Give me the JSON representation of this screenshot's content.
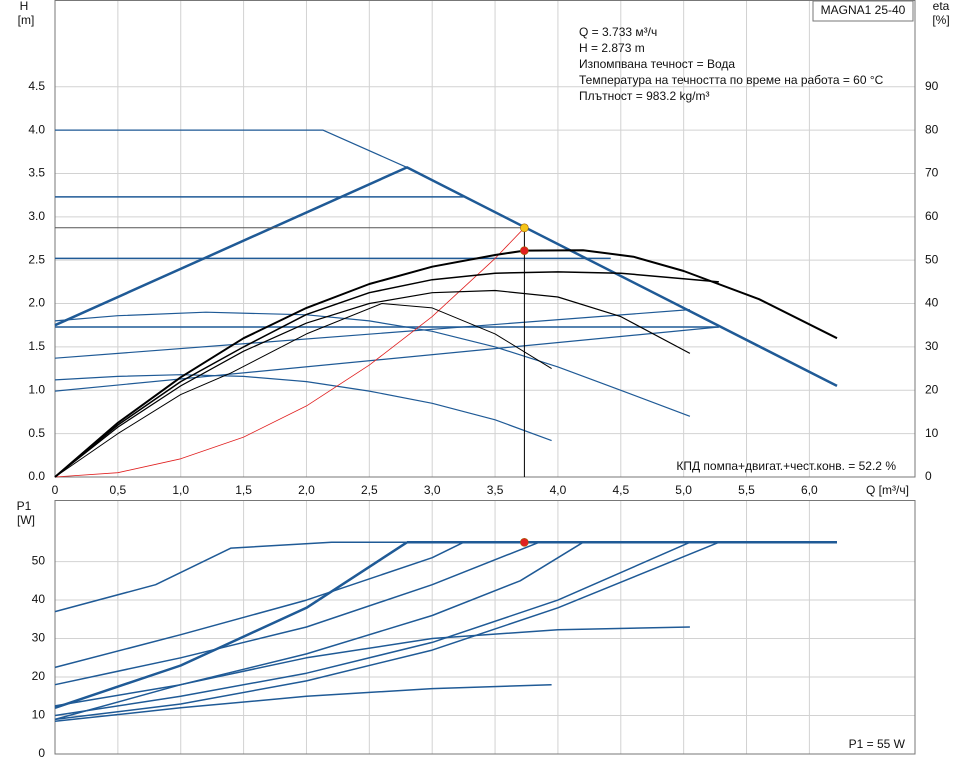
{
  "chart_data": [
    {
      "type": "line",
      "model": "MAGNA1 25-40",
      "y_label": "H",
      "y_unit": "[m]",
      "y2_label": "eta",
      "y2_unit": "[%]",
      "x_label": "Q [m³/ч]",
      "annotations": [
        "Q = 3.733 м³/ч",
        "H = 2.873 m",
        "Изпомпвана течност = Вода",
        "Температура на течността по време на работа = 60 °C",
        "Плътност = 983.2 kg/m³"
      ],
      "efficiency_note": "КПД помпа+двигат.+чест.конв. = 52.2 %",
      "xlim": [
        0,
        6.84
      ],
      "ylim": [
        0,
        5.5
      ],
      "y2lim": [
        0,
        110
      ],
      "xticks": [
        0,
        {
          "value": 0.5,
          "label": "0,5"
        },
        {
          "value": 1,
          "label": "1,0"
        },
        {
          "value": 1.5,
          "label": "1,5"
        },
        {
          "value": 2,
          "label": "2,0"
        },
        {
          "value": 2.5,
          "label": "2,5"
        },
        {
          "value": 3,
          "label": "3,0"
        },
        {
          "value": 3.5,
          "label": "3,5"
        },
        {
          "value": 4,
          "label": "4,0"
        },
        {
          "value": 4.5,
          "label": "4,5"
        },
        {
          "value": 5,
          "label": "5,0"
        },
        {
          "value": 5.5,
          "label": "5,5"
        },
        {
          "value": 6,
          "label": "6,0"
        }
      ],
      "yticks": [
        {
          "value": 0,
          "label": "0.0"
        },
        0.5,
        {
          "value": 1,
          "label": "1.0"
        },
        1.5,
        {
          "value": 2,
          "label": "2.0"
        },
        2.5,
        {
          "value": 3,
          "label": "3.0"
        },
        3.5,
        {
          "value": 4,
          "label": "4.0"
        },
        4.5
      ],
      "y2ticks": [
        0,
        10,
        20,
        30,
        40,
        50,
        60,
        70,
        80,
        90
      ],
      "show_xtick_labels": true,
      "grid": true,
      "series": [
        {
          "color": "#1f5a96",
          "line_width": 1.2,
          "x": [
            0,
            2.13,
            2.8
          ],
          "values": [
            4.0,
            4.0,
            3.57
          ]
        },
        {
          "color": "#1f5a96",
          "line_width": 2.5,
          "x": [
            0,
            2.8,
            6.22
          ],
          "values": [
            1.75,
            3.57,
            1.05
          ]
        },
        {
          "color": "#1f5a96",
          "line_width": 1.5,
          "x": [
            0,
            3.25
          ],
          "values": [
            3.23,
            3.23
          ]
        },
        {
          "color": "#1f5a96",
          "line_width": 1.5,
          "x": [
            0,
            4.42
          ],
          "values": [
            2.52,
            2.52
          ]
        },
        {
          "color": "#1f5a96",
          "line_width": 1.5,
          "x": [
            0,
            5.28
          ],
          "values": [
            1.73,
            1.73
          ]
        },
        {
          "color": "#1f5a96",
          "line_width": 1.2,
          "x": [
            0,
            5.05
          ],
          "values": [
            1.37,
            1.93
          ]
        },
        {
          "color": "#1f5a96",
          "line_width": 1.2,
          "x": [
            0,
            5.28
          ],
          "values": [
            0.99,
            1.73
          ]
        },
        {
          "color": "#1f5a96",
          "line_width": 1.2,
          "x": [
            0,
            0.5,
            1.2,
            2,
            2.5,
            3,
            3.5,
            4,
            4.5,
            5.05
          ],
          "values": [
            1.8,
            1.86,
            1.9,
            1.87,
            1.8,
            1.68,
            1.5,
            1.27,
            1.0,
            0.7
          ]
        },
        {
          "color": "#1f5a96",
          "line_width": 1.2,
          "x": [
            0,
            0.5,
            1,
            1.5,
            2,
            2.5,
            3,
            3.5,
            3.95
          ],
          "values": [
            1.12,
            1.16,
            1.18,
            1.16,
            1.1,
            0.99,
            0.85,
            0.66,
            0.42
          ]
        },
        {
          "color": "#555555",
          "line_width": 1,
          "x": [
            0,
            3.733
          ],
          "values": [
            2.873,
            2.873
          ]
        },
        {
          "color": "#000000",
          "line_width": 1,
          "x": [
            3.733,
            3.733
          ],
          "values": [
            0,
            2.873
          ]
        },
        {
          "color": "#e02020",
          "line_width": 0.8,
          "x": [
            0,
            0.5,
            1,
            1.5,
            2,
            2.5,
            3,
            3.5,
            3.733
          ],
          "values": [
            0,
            0.05,
            0.21,
            0.46,
            0.82,
            1.29,
            1.85,
            2.52,
            2.873
          ]
        },
        {
          "color": "#000000",
          "line_width": 2,
          "axis": "y2",
          "x": [
            0,
            0.5,
            1,
            1.5,
            2,
            2.5,
            3,
            3.5,
            3.733,
            4.2,
            4.6,
            5,
            5.6,
            6.22
          ],
          "values": [
            0,
            12.5,
            23,
            32,
            39,
            44.5,
            48.5,
            51.2,
            52.2,
            52.3,
            50.8,
            47.5,
            41,
            32
          ]
        },
        {
          "color": "#000000",
          "line_width": 1.5,
          "axis": "y2",
          "x": [
            0,
            0.5,
            1,
            1.5,
            2,
            2.5,
            3,
            3.5,
            4,
            4.5,
            5.28
          ],
          "values": [
            0,
            12,
            22,
            30,
            37.5,
            42.5,
            45.5,
            47,
            47.3,
            47,
            45
          ]
        },
        {
          "color": "#000000",
          "line_width": 1.2,
          "axis": "y2",
          "x": [
            0,
            0.5,
            1,
            1.5,
            2,
            2.5,
            3,
            3.5,
            4,
            4.5,
            5.05
          ],
          "values": [
            0,
            11.5,
            21,
            29,
            35.5,
            40,
            42.5,
            43,
            41.5,
            37,
            28.5
          ]
        },
        {
          "color": "#000000",
          "line_width": 1,
          "axis": "y2",
          "x": [
            0,
            0.5,
            1,
            1.4,
            2,
            2.6,
            3,
            3.5,
            3.95
          ],
          "values": [
            0,
            10,
            19,
            24,
            33,
            40,
            39,
            33,
            25
          ]
        }
      ],
      "points": [
        {
          "x": 3.733,
          "y": 2.873,
          "color": "#f5c518"
        },
        {
          "x": 3.733,
          "y": 52.2,
          "axis": "y2",
          "color": "#e02020"
        }
      ]
    },
    {
      "type": "line",
      "y_label": "P1",
      "y_unit": "[W]",
      "power_note": "P1 = 55 W",
      "xlim": [
        0,
        6.84
      ],
      "ylim": [
        0,
        66
      ],
      "xticks": [
        0,
        0.5,
        1,
        1.5,
        2,
        2.5,
        3,
        3.5,
        4,
        4.5,
        5,
        5.5,
        6
      ],
      "show_xtick_labels": false,
      "yticks": [
        0,
        10,
        20,
        30,
        40,
        50
      ],
      "grid": true,
      "series": [
        {
          "color": "#1f5a96",
          "line_width": 1.5,
          "x": [
            0,
            0.8,
            1.4,
            2.2,
            6.22
          ],
          "values": [
            37,
            44,
            53.5,
            55,
            55
          ]
        },
        {
          "color": "#1f5a96",
          "line_width": 2.5,
          "x": [
            2.8,
            6.22
          ],
          "values": [
            55,
            55
          ]
        },
        {
          "color": "#1f5a96",
          "line_width": 1.5,
          "x": [
            0,
            1,
            2,
            3,
            3.25
          ],
          "values": [
            22.5,
            31,
            40,
            51,
            55
          ]
        },
        {
          "color": "#1f5a96",
          "line_width": 1.5,
          "x": [
            0,
            1,
            2,
            3,
            3.85
          ],
          "values": [
            18,
            25,
            33,
            44,
            55
          ]
        },
        {
          "color": "#1f5a96",
          "line_width": 2.5,
          "x": [
            0,
            1,
            2,
            2.8
          ],
          "values": [
            12,
            23,
            38,
            55
          ]
        },
        {
          "color": "#1f5a96",
          "line_width": 1.5,
          "x": [
            0,
            1,
            2,
            3,
            3.7,
            4.2
          ],
          "values": [
            12.5,
            18,
            26,
            36,
            45,
            55
          ]
        },
        {
          "color": "#1f5a96",
          "line_width": 1.5,
          "x": [
            0,
            1,
            2,
            3,
            4,
            5.05
          ],
          "values": [
            10,
            15,
            21,
            29,
            40,
            55
          ]
        },
        {
          "color": "#1f5a96",
          "line_width": 1.5,
          "x": [
            0,
            1,
            2,
            3,
            4,
            5.28
          ],
          "values": [
            9,
            13,
            19,
            27,
            38,
            55
          ]
        },
        {
          "color": "#1f5a96",
          "line_width": 1.5,
          "x": [
            0,
            1,
            2,
            3,
            4,
            5.05
          ],
          "values": [
            9,
            18,
            25,
            30,
            32.3,
            33
          ]
        },
        {
          "color": "#1f5a96",
          "line_width": 1.5,
          "x": [
            0,
            1,
            2,
            3,
            3.95
          ],
          "values": [
            8.5,
            12,
            15,
            17,
            18
          ]
        }
      ],
      "points": [
        {
          "x": 3.733,
          "y": 55,
          "color": "#e02020"
        }
      ]
    }
  ]
}
